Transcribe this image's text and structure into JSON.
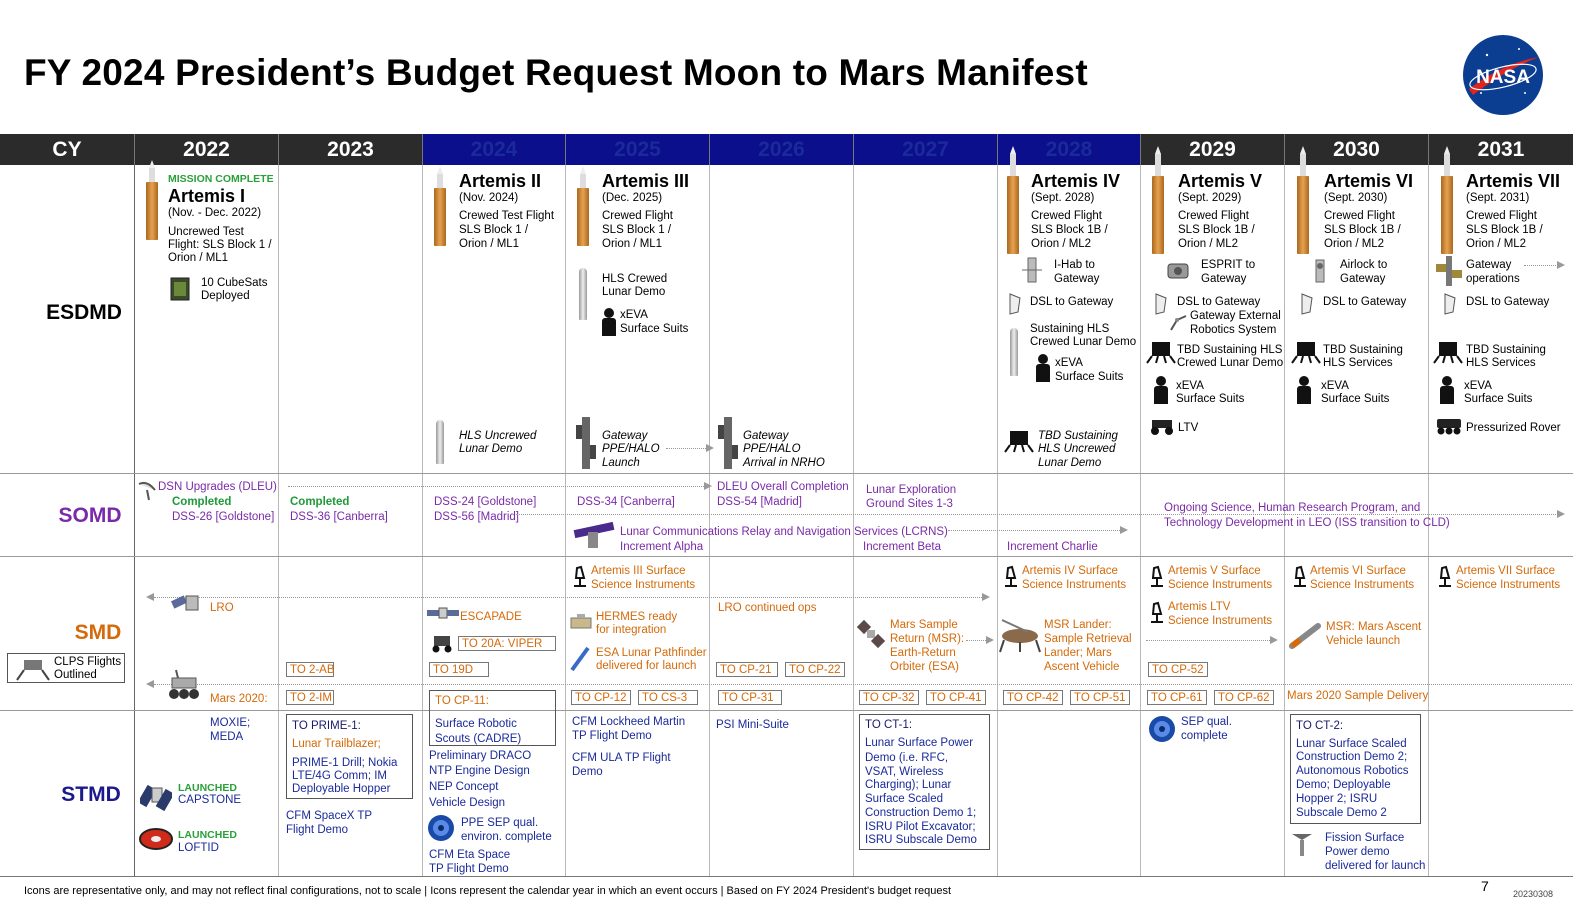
{
  "title": "FY 2024 President’s Budget Request Moon to Mars Manifest",
  "logo_text": "NASA",
  "header": {
    "cy_label": "CY",
    "years": [
      "2022",
      "2023",
      "2024",
      "2025",
      "2026",
      "2027",
      "2028",
      "2029",
      "2030",
      "2031"
    ],
    "colors": {
      "dark": "#2b2b2b",
      "blue": "#0b0f8c"
    }
  },
  "rows": {
    "esdmd": "ESDMD",
    "somd": "SOMD",
    "smd": "SMD",
    "stmd": "STMD"
  },
  "esdmd": {
    "artemis1": {
      "status": "MISSION COMPLETE",
      "name": "Artemis I",
      "date": "(Nov. - Dec. 2022)",
      "desc1": "Uncrewed Test",
      "desc2": "Flight: SLS Block 1 /",
      "desc3": "Orion / ML1",
      "cubesats1": "10 CubeSats",
      "cubesats2": "Deployed"
    },
    "artemis2": {
      "name": "Artemis II",
      "date": "(Nov. 2024)",
      "desc1": "Crewed Test Flight",
      "desc2": "SLS Block 1 /",
      "desc3": "Orion / ML1",
      "hls1": "HLS Uncrewed",
      "hls2": "Lunar Demo"
    },
    "artemis3": {
      "name": "Artemis III",
      "date": "(Dec. 2025)",
      "desc1": "Crewed Flight",
      "desc2": "SLS Block 1 /",
      "desc3": "Orion / ML1",
      "hls1": "HLS Crewed",
      "hls2": "Lunar Demo",
      "xeva1": "xEVA",
      "xeva2": "Surface Suits",
      "gw1": "Gateway",
      "gw2": "PPE/HALO",
      "gw3": "Launch"
    },
    "y2026": {
      "gw1": "Gateway",
      "gw2": "PPE/HALO",
      "gw3": "Arrival in NRHO"
    },
    "artemis4": {
      "name": "Artemis IV",
      "date": "(Sept. 2028)",
      "desc1": "Crewed Flight",
      "desc2": "SLS Block 1B /",
      "desc3": "Orion / ML2",
      "ihab1": "I-Hab to",
      "ihab2": "Gateway",
      "dsl": "DSL to Gateway",
      "sus1": "Sustaining HLS",
      "sus2": "Crewed Lunar Demo",
      "xeva1": "xEVA",
      "xeva2": "Surface Suits",
      "tbd1": "TBD Sustaining",
      "tbd2": "HLS Uncrewed",
      "tbd3": "Lunar Demo"
    },
    "artemis5": {
      "name": "Artemis V",
      "date": "(Sept. 2029)",
      "desc1": "Crewed Flight",
      "desc2": "SLS Block 1B /",
      "desc3": "Orion / ML2",
      "esprit1": "ESPRIT to",
      "esprit2": "Gateway",
      "dsl": "DSL to Gateway",
      "ger1": "Gateway External",
      "ger2": "Robotics System",
      "tbd1": "TBD Sustaining HLS",
      "tbd2": "Crewed Lunar Demo",
      "xeva1": "xEVA",
      "xeva2": "Surface Suits",
      "ltv": "LTV"
    },
    "artemis6": {
      "name": "Artemis VI",
      "date": "(Sept. 2030)",
      "desc1": "Crewed Flight",
      "desc2": "SLS Block 1B /",
      "desc3": "Orion / ML2",
      "air1": "Airlock to",
      "air2": "Gateway",
      "dsl": "DSL to Gateway",
      "tbd1": "TBD Sustaining",
      "tbd2": "HLS Services",
      "xeva1": "xEVA",
      "xeva2": "Surface Suits"
    },
    "artemis7": {
      "name": "Artemis VII",
      "date": "(Sept. 2031)",
      "desc1": "Crewed Flight",
      "desc2": "SLS Block 1B /",
      "desc3": "Orion / ML2",
      "gwo1": "Gateway",
      "gwo2": "operations",
      "dsl": "DSL to Gateway",
      "tbd1": "TBD Sustaining",
      "tbd2": "HLS Services",
      "xeva1": "xEVA",
      "xeva2": "Surface Suits",
      "rover": "Pressurized Rover"
    }
  },
  "somd": {
    "dsn": "DSN Upgrades (DLEU)",
    "completed": "Completed",
    "dss26": "DSS-26 [Goldstone]",
    "completed2": "Completed",
    "dss36": "DSS-36 [Canberra]",
    "dss24": "DSS-24 [Goldstone]",
    "dss56": "DSS-56 [Madrid]",
    "dss34": "DSS-34 [Canberra]",
    "dleu": "DLEU Overall Completion",
    "dss54": "DSS-54 [Madrid]",
    "ground1": "Lunar Exploration",
    "ground2": "Ground Sites 1-3",
    "lcrns": "Lunar Communications Relay and Navigation Services (LCRNS)",
    "incA": "Increment Alpha",
    "incB": "Increment Beta",
    "incC": "Increment Charlie",
    "ongoing1": "Ongoing Science, Human Research Program, and",
    "ongoing2": "Technology Development in LEO (ISS transition to CLD)"
  },
  "smd": {
    "lro": "LRO",
    "clps1": "CLPS Flights",
    "clps2": "Outlined",
    "mars2020": "Mars 2020:",
    "to2ab": "TO 2-AB",
    "to2im": "TO 2-IM",
    "escapade": "ESCAPADE",
    "viper": "TO 20A: VIPER",
    "to19d": "TO 19D",
    "a3sci1": "Artemis III Surface",
    "a3sci2": "Science Instruments",
    "hermes1": "HERMES ready",
    "hermes2": "for integration",
    "esa1": "ESA Lunar Pathfinder",
    "esa2": "delivered for launch",
    "cp12": "TO CP-12",
    "cs3": "TO CS-3",
    "lroops": "LRO continued ops",
    "cp21": "TO CP-21",
    "cp22": "TO CP-22",
    "cp31": "TO CP-31",
    "msr1": "Mars Sample",
    "msr2": "Return (MSR):",
    "msr3": "Earth-Return",
    "msr4": "Orbiter (ESA)",
    "cp32": "TO CP-32",
    "cp41": "TO CP-41",
    "a4sci1": "Artemis IV Surface",
    "a4sci2": "Science Instruments",
    "msrl1": "MSR Lander:",
    "msrl2": "Sample Retrieval",
    "msrl3": "Lander; Mars",
    "msrl4": "Ascent Vehicle",
    "cp42": "TO CP-42",
    "cp51": "TO CP-51",
    "a5sci1": "Artemis V Surface",
    "a5sci2": "Science Instruments",
    "ltvsci1": "Artemis LTV",
    "ltvsci2": "Science Instruments",
    "cp52": "TO CP-52",
    "cp61": "TO CP-61",
    "cp62": "TO CP-62",
    "a6sci1": "Artemis VI Surface",
    "a6sci2": "Science Instruments",
    "mav1": "MSR: Mars Ascent",
    "mav2": "Vehicle launch",
    "m2020sd": "Mars 2020 Sample Delivery",
    "a7sci1": "Artemis VII Surface",
    "a7sci2": "Science Instruments"
  },
  "stmd": {
    "moxie1": "MOXIE;",
    "moxie2": "MEDA",
    "launched": "LAUNCHED",
    "capstone": "CAPSTONE",
    "launched2": "LAUNCHED",
    "loftid": "LOFTID",
    "prime_title": "TO PRIME-1:",
    "prime_lt": "Lunar Trailblazer;",
    "prime1": "PRIME-1 Drill; Nokia",
    "prime2": "LTE/4G Comm; IM",
    "prime3": "Deployable Hopper",
    "cfm1": "CFM SpaceX TP",
    "cfm2": "Flight Demo",
    "cp11": "TO CP-11:",
    "cadre1": "Surface Robotic",
    "cadre2": "Scouts (CADRE)",
    "draco1": "Preliminary DRACO",
    "draco2": "NTP Engine Design",
    "nep1": "NEP Concept",
    "nep2": "Vehicle Design",
    "ppe1": "PPE SEP qual.",
    "ppe2": "environ. complete",
    "eta1": "CFM Eta Space",
    "eta2": "TP Flight Demo",
    "lm1": "CFM Lockheed Martin",
    "lm2": "TP Flight Demo",
    "ula1": "CFM ULA TP Flight",
    "ula2": "Demo",
    "psi": "PSI Mini-Suite",
    "ct1_title": "TO CT-1:",
    "ct1_lines": [
      "Lunar Surface Power",
      "Demo (i.e. RFC,",
      "VSAT, Wireless",
      "Charging); Lunar",
      "Surface Scaled",
      "Construction Demo 1;",
      "ISRU Pilot Excavator;",
      "ISRU Subscale Demo"
    ],
    "sep1": "SEP qual.",
    "sep2": "complete",
    "ct2_title": "TO CT-2:",
    "ct2_lines": [
      "Lunar Surface Scaled",
      "Construction Demo 2;",
      "Autonomous Robotics",
      "Demo; Deployable",
      "Hopper 2; ISRU",
      "Subscale Demo 2"
    ],
    "fission1": "Fission Surface",
    "fission2": "Power demo",
    "fission3": "delivered for launch"
  },
  "footer": {
    "note": "Icons are representative only, and may not reflect final configurations, not to scale | Icons represent the calendar year in which an event occurs | Based on FY 2024 President's budget request",
    "page": "7",
    "code": "20230308"
  }
}
